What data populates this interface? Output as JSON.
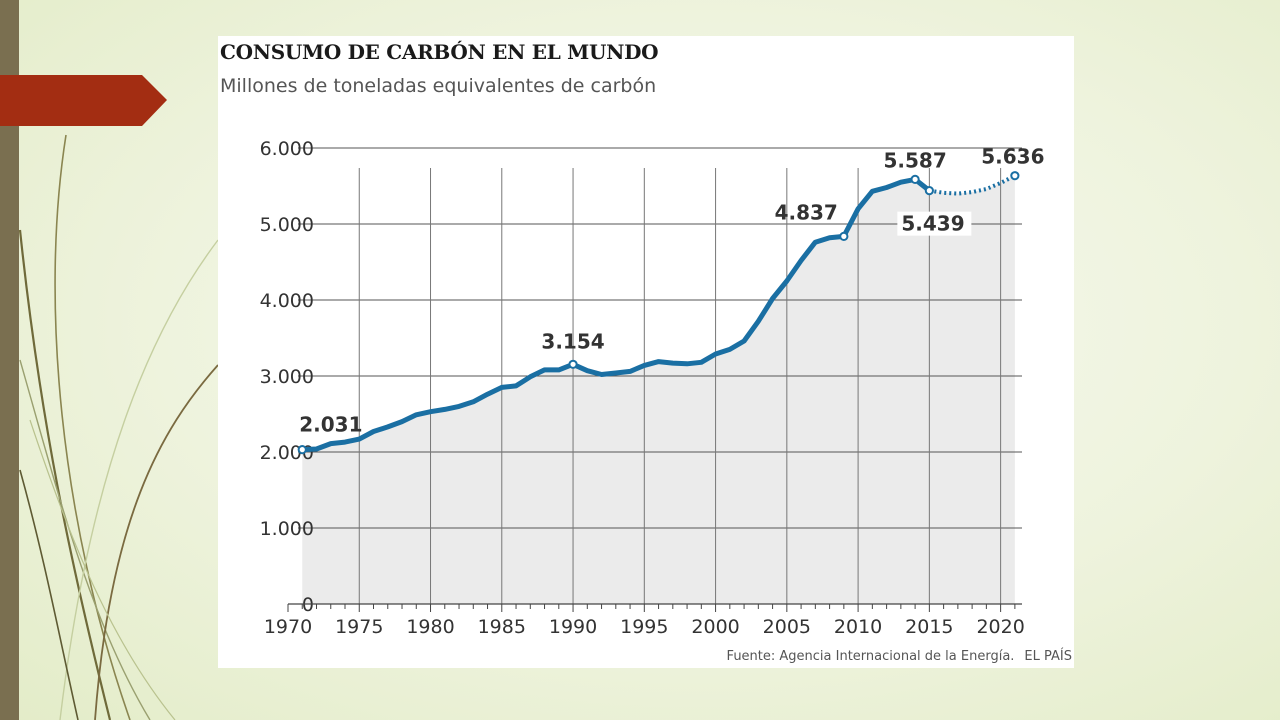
{
  "slide": {
    "colors": {
      "sidebar": "#7a6f50",
      "accent_arrow": "#a32d12"
    }
  },
  "chart_data": {
    "type": "line",
    "title": "CONSUMO DE CARBÓN EN EL MUNDO",
    "subtitle": "Millones de toneladas equivalentes de carbón",
    "xlabel": "",
    "ylabel": "",
    "xlim": [
      1970,
      2021.5
    ],
    "ylim": [
      0,
      6000
    ],
    "grid": true,
    "y_ticks": [
      {
        "value": 0,
        "label": "0"
      },
      {
        "value": 1000,
        "label": "1.000"
      },
      {
        "value": 2000,
        "label": "2.000"
      },
      {
        "value": 3000,
        "label": "3.000"
      },
      {
        "value": 4000,
        "label": "4.000"
      },
      {
        "value": 5000,
        "label": "5.000"
      },
      {
        "value": 6000,
        "label": "6.000"
      }
    ],
    "x_ticks": [
      {
        "value": 1970,
        "label": "1970"
      },
      {
        "value": 1975,
        "label": "1975"
      },
      {
        "value": 1980,
        "label": "1980"
      },
      {
        "value": 1985,
        "label": "1985"
      },
      {
        "value": 1990,
        "label": "1990"
      },
      {
        "value": 1995,
        "label": "1995"
      },
      {
        "value": 2000,
        "label": "2000"
      },
      {
        "value": 2005,
        "label": "2005"
      },
      {
        "value": 2010,
        "label": "2010"
      },
      {
        "value": 2015,
        "label": "2015"
      },
      {
        "value": 2020,
        "label": "2020"
      }
    ],
    "series": [
      {
        "style": "solid",
        "color": "#1a6fa3",
        "x": [
          1971,
          1972,
          1973,
          1974,
          1975,
          1976,
          1977,
          1978,
          1979,
          1980,
          1981,
          1982,
          1983,
          1984,
          1985,
          1986,
          1987,
          1988,
          1989,
          1990,
          1991,
          1992,
          1993,
          1994,
          1995,
          1996,
          1997,
          1998,
          1999,
          2000,
          2001,
          2002,
          2003,
          2004,
          2005,
          2006,
          2007,
          2008,
          2009,
          2010,
          2011,
          2012,
          2013,
          2014,
          2015
        ],
        "y": [
          2031,
          2040,
          2110,
          2130,
          2170,
          2270,
          2330,
          2400,
          2490,
          2530,
          2560,
          2600,
          2660,
          2760,
          2850,
          2870,
          2990,
          3080,
          3080,
          3154,
          3070,
          3020,
          3040,
          3060,
          3140,
          3190,
          3170,
          3160,
          3180,
          3290,
          3350,
          3460,
          3720,
          4020,
          4250,
          4520,
          4760,
          4820,
          4837,
          5200,
          5430,
          5480,
          5550,
          5587,
          5439
        ]
      },
      {
        "style": "dotted",
        "color": "#1a6fa3",
        "x": [
          2015,
          2016,
          2017,
          2018,
          2019,
          2020,
          2021
        ],
        "y": [
          5439,
          5410,
          5400,
          5420,
          5460,
          5540,
          5636
        ]
      }
    ],
    "annotations": [
      {
        "x": 1971,
        "y": 2031,
        "label": "2.031",
        "position": "above"
      },
      {
        "x": 1990,
        "y": 3154,
        "label": "3.154",
        "position": "above"
      },
      {
        "x": 2009,
        "y": 4837,
        "label": "4.837",
        "position": "above-left"
      },
      {
        "x": 2014,
        "y": 5587,
        "label": "5.587",
        "position": "above"
      },
      {
        "x": 2015,
        "y": 5439,
        "label": "5.439",
        "position": "below"
      },
      {
        "x": 2021,
        "y": 5636,
        "label": "5.636",
        "position": "above"
      }
    ],
    "source": "Fuente: Agencia Internacional de la Energía.",
    "brand": "EL PAÍS"
  }
}
